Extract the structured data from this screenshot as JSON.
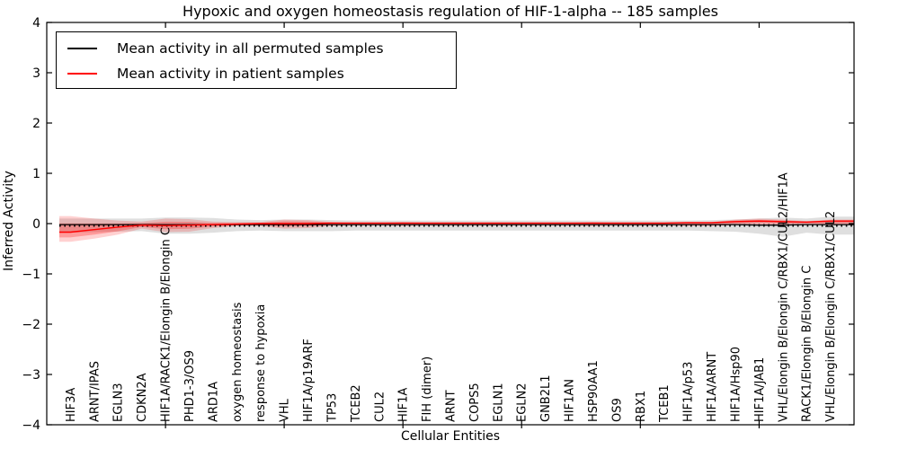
{
  "figure": {
    "title": "Hypoxic and oxygen homeostasis regulation of HIF-1-alpha -- 185 samples",
    "xlabel": "Cellular Entities",
    "ylabel": "Inferred Activity"
  },
  "chart_data": {
    "type": "line",
    "title": "Hypoxic and oxygen homeostasis regulation of HIF-1-alpha -- 185 samples",
    "xlabel": "Cellular Entities",
    "ylabel": "Inferred Activity",
    "ylim": [
      -4,
      4
    ],
    "grid": false,
    "legend_position": "upper left",
    "ytick_values": [
      4,
      3,
      2,
      1,
      0,
      -1,
      -2,
      -3,
      -4
    ],
    "ytick_labels": [
      "4",
      "3",
      "2",
      "1",
      "0",
      "−1",
      "−2",
      "−3",
      "−4"
    ],
    "xtick_positions": [
      5,
      10,
      15,
      20,
      25,
      30
    ],
    "categories": [
      "HIF3A",
      "ARNT/IPAS",
      "EGLN3",
      "CDKN2A",
      "HIF1A/RACK1/Elongin B/Elongin C",
      "PHD1-3/OS9",
      "ARD1A",
      "oxygen homeostasis",
      "response to hypoxia",
      "VHL",
      "HIF1A/p19ARF",
      "TP53",
      "TCEB2",
      "CUL2",
      "HIF1A",
      "FIH (dimer)",
      "ARNT",
      "COPS5",
      "EGLN1",
      "EGLN2",
      "GNB2L1",
      "HIF1AN",
      "HSP90AA1",
      "OS9",
      "RBX1",
      "TCEB1",
      "HIF1A/p53",
      "HIF1A/ARNT",
      "HIF1A/Hsp90",
      "HIF1A/JAB1",
      "VHL/Elongin B/Elongin C/RBX1/CUL2/HIF1A",
      "RACK1/Elongin B/Elongin C",
      "VHL/Elongin B/Elongin C/RBX1/CUL2"
    ],
    "series": [
      {
        "name": "Mean activity in all permuted samples",
        "color": "#000000",
        "band_color": "#888888",
        "values": [
          -0.02,
          -0.02,
          -0.02,
          -0.02,
          -0.02,
          -0.02,
          -0.02,
          -0.02,
          -0.02,
          -0.02,
          -0.02,
          -0.02,
          -0.02,
          -0.02,
          -0.02,
          -0.02,
          -0.02,
          -0.02,
          -0.02,
          -0.02,
          -0.02,
          -0.02,
          -0.02,
          -0.02,
          -0.02,
          -0.02,
          -0.02,
          -0.02,
          -0.02,
          -0.03,
          -0.03,
          -0.02,
          -0.02
        ],
        "band_upper": [
          0.1,
          0.1,
          0.1,
          0.1,
          0.12,
          0.12,
          0.11,
          0.08,
          0.07,
          0.08,
          0.08,
          0.07,
          0.06,
          0.06,
          0.06,
          0.06,
          0.06,
          0.06,
          0.06,
          0.06,
          0.06,
          0.06,
          0.06,
          0.06,
          0.06,
          0.06,
          0.06,
          0.07,
          0.08,
          0.1,
          0.12,
          0.1,
          0.14
        ],
        "band_lower": [
          -0.18,
          -0.17,
          -0.16,
          -0.15,
          -0.2,
          -0.2,
          -0.18,
          -0.15,
          -0.14,
          -0.15,
          -0.15,
          -0.15,
          -0.14,
          -0.14,
          -0.14,
          -0.14,
          -0.14,
          -0.14,
          -0.14,
          -0.14,
          -0.14,
          -0.14,
          -0.14,
          -0.14,
          -0.14,
          -0.14,
          -0.14,
          -0.15,
          -0.16,
          -0.2,
          -0.26,
          -0.18,
          -0.22
        ],
        "zero_reference_dashed_line": -0.035
      },
      {
        "name": "Mean activity in patient samples",
        "color": "#ff0000",
        "band_color": "#ff0000",
        "values": [
          -0.17,
          -0.12,
          -0.07,
          -0.03,
          -0.04,
          -0.03,
          -0.02,
          -0.01,
          0.0,
          0.0,
          0.0,
          0.01,
          0.01,
          0.01,
          0.01,
          0.01,
          0.01,
          0.01,
          0.01,
          0.01,
          0.01,
          0.01,
          0.01,
          0.01,
          0.01,
          0.01,
          0.02,
          0.02,
          0.04,
          0.05,
          0.04,
          0.03,
          0.05
        ],
        "band_upper": [
          0.15,
          0.1,
          0.06,
          0.04,
          0.1,
          0.09,
          0.04,
          0.03,
          0.03,
          0.08,
          0.07,
          0.03,
          0.02,
          0.02,
          0.03,
          0.02,
          0.02,
          0.02,
          0.02,
          0.02,
          0.02,
          0.02,
          0.03,
          0.02,
          0.02,
          0.02,
          0.03,
          0.03,
          0.08,
          0.1,
          0.08,
          0.05,
          0.08
        ],
        "band_lower": [
          -0.36,
          -0.3,
          -0.22,
          -0.1,
          -0.17,
          -0.16,
          -0.09,
          -0.05,
          -0.05,
          -0.1,
          -0.09,
          -0.05,
          -0.04,
          -0.04,
          -0.05,
          -0.04,
          -0.04,
          -0.04,
          -0.04,
          -0.04,
          -0.04,
          -0.04,
          -0.05,
          -0.04,
          -0.04,
          -0.04,
          -0.05,
          -0.05,
          -0.03,
          -0.02,
          -0.02,
          -0.02,
          -0.03
        ]
      }
    ]
  }
}
